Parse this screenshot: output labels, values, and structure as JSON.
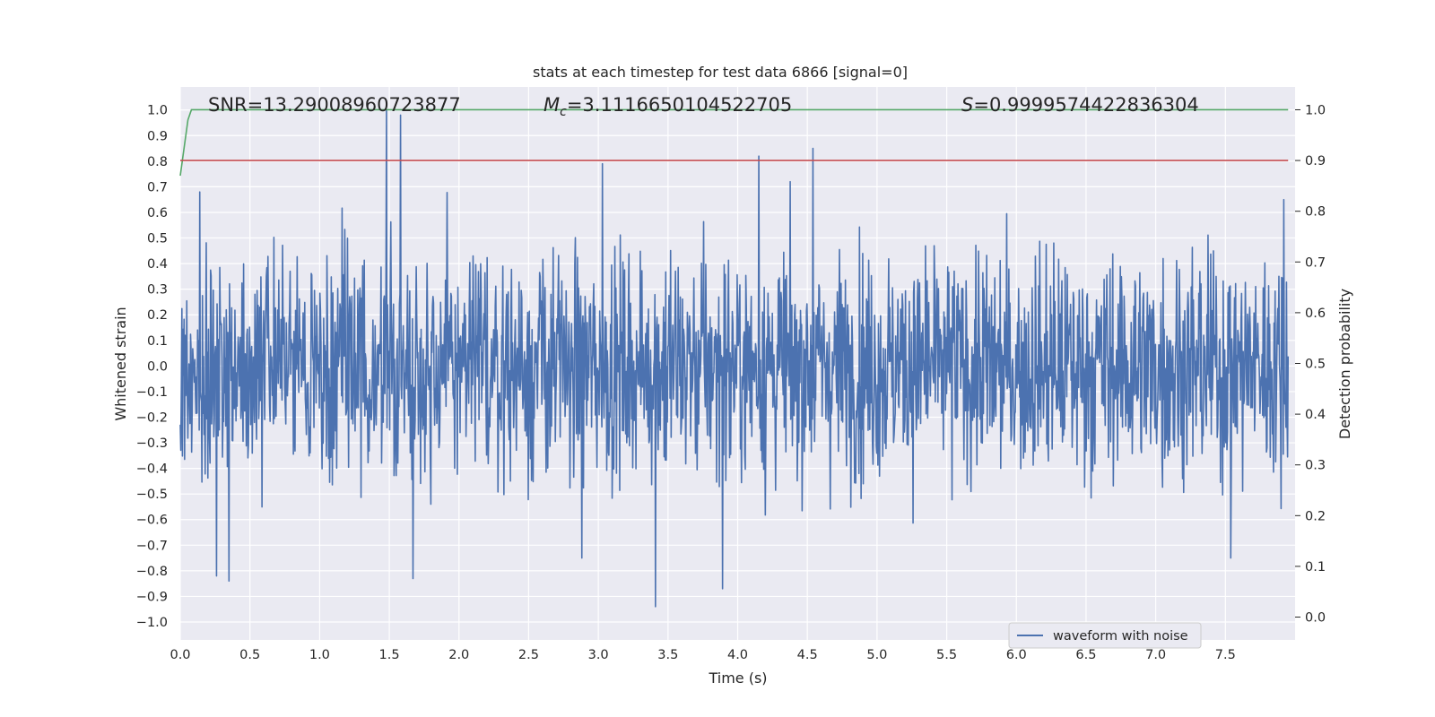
{
  "chart_data": {
    "type": "line",
    "title": "stats at each timestep for test data 6866 [signal=0]",
    "xlabel": "Time (s)",
    "ylabel": "Whitened strain",
    "ylabel_right": "Detection probability",
    "xlim": [
      0.0,
      8.0
    ],
    "ylim": [
      -1.07,
      1.09
    ],
    "ylim_right": [
      -0.045,
      1.045
    ],
    "grid": true,
    "x_ticks": [
      "0.0",
      "0.5",
      "1.0",
      "1.5",
      "2.0",
      "2.5",
      "3.0",
      "3.5",
      "4.0",
      "4.5",
      "5.0",
      "5.5",
      "6.0",
      "6.5",
      "7.0",
      "7.5"
    ],
    "y_ticks": [
      "1.0",
      "0.9",
      "0.8",
      "0.7",
      "0.6",
      "0.5",
      "0.4",
      "0.3",
      "0.2",
      "0.1",
      "0.0",
      "−0.1",
      "−0.2",
      "−0.3",
      "−0.4",
      "−0.5",
      "−0.6",
      "−0.7",
      "−0.8",
      "−0.9",
      "−1.0"
    ],
    "y_right_ticks": [
      "1.0",
      "0.9",
      "0.8",
      "0.7",
      "0.6",
      "0.5",
      "0.4",
      "0.3",
      "0.2",
      "0.1",
      "0.0"
    ],
    "annotations": {
      "snr": "SNR=13.29008960723877",
      "mc_symbol": "M",
      "mc_sub": "c",
      "mc_value": "=3.1116650104522705",
      "s_symbol": "S",
      "s_value": "=0.9999574422836304"
    },
    "legend": {
      "placement": "lower-right",
      "entries": [
        "waveform with noise"
      ]
    },
    "series": [
      {
        "name": "waveform with noise",
        "color": "#4C72B0",
        "kind": "noise",
        "n_points": 2048,
        "typical_amplitude": 0.3,
        "max": 1.0,
        "min": -0.94,
        "peaks": [
          {
            "x": 1.48,
            "y": 1.0
          },
          {
            "x": 1.58,
            "y": 0.98
          },
          {
            "x": 4.15,
            "y": 0.82
          },
          {
            "x": 4.54,
            "y": 0.85
          },
          {
            "x": 3.41,
            "y": -0.94
          },
          {
            "x": 3.89,
            "y": -0.87
          },
          {
            "x": 0.35,
            "y": -0.84
          },
          {
            "x": 1.67,
            "y": -0.83
          },
          {
            "x": 0.26,
            "y": -0.82
          },
          {
            "x": 2.88,
            "y": -0.75
          },
          {
            "x": 7.54,
            "y": -0.75
          },
          {
            "x": 0.14,
            "y": 0.68
          },
          {
            "x": 3.03,
            "y": 0.79
          },
          {
            "x": 7.92,
            "y": 0.65
          }
        ]
      },
      {
        "name": "",
        "color": "#55A868",
        "axis": "right",
        "x": [
          0.0,
          0.015,
          0.035,
          0.055,
          0.08,
          0.2,
          1.0,
          3.0,
          5.0,
          7.0,
          7.95
        ],
        "y": [
          0.87,
          0.9,
          0.94,
          0.98,
          1.0,
          1.0,
          1.0,
          1.0,
          1.0,
          1.0,
          1.0
        ]
      },
      {
        "name": "",
        "color": "#C44E52",
        "axis": "right",
        "x": [
          0.0,
          7.95
        ],
        "y": [
          0.9,
          0.9
        ]
      }
    ]
  }
}
